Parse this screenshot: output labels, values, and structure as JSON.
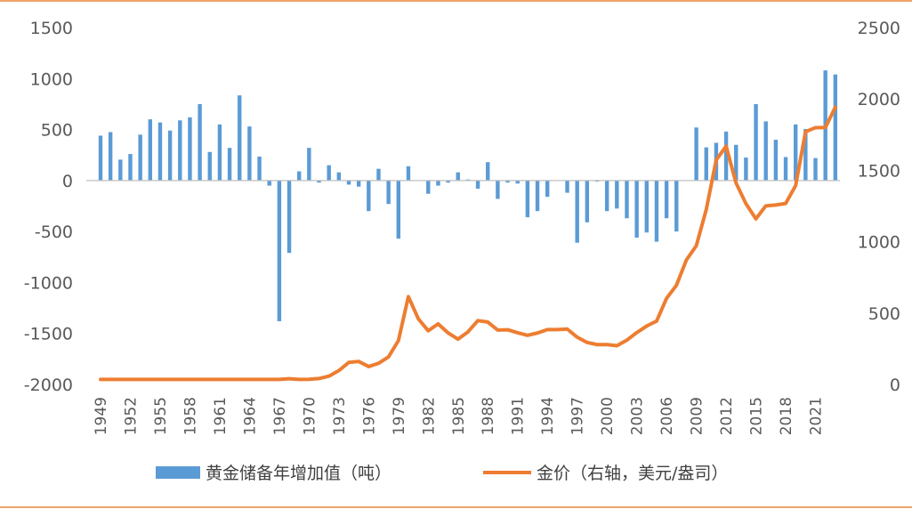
{
  "chart_data": {
    "type": "bar+line",
    "colors": {
      "bar": "#5B9BD5",
      "line": "#ED7D31",
      "frame": "#F0A46A",
      "axis": "#BFBFBF"
    },
    "x": [
      1949,
      1950,
      1951,
      1952,
      1953,
      1954,
      1955,
      1956,
      1957,
      1958,
      1959,
      1960,
      1961,
      1962,
      1963,
      1964,
      1965,
      1966,
      1967,
      1968,
      1969,
      1970,
      1971,
      1972,
      1973,
      1974,
      1975,
      1976,
      1977,
      1978,
      1979,
      1980,
      1981,
      1982,
      1983,
      1984,
      1985,
      1986,
      1987,
      1988,
      1989,
      1990,
      1991,
      1992,
      1993,
      1994,
      1995,
      1996,
      1997,
      1998,
      1999,
      2000,
      2001,
      2002,
      2003,
      2004,
      2005,
      2006,
      2007,
      2008,
      2009,
      2010,
      2011,
      2012,
      2013,
      2014,
      2015,
      2016,
      2017,
      2018,
      2019,
      2020,
      2021,
      2022,
      2023
    ],
    "x_tick_labels": [
      "1949",
      "1952",
      "1955",
      "1958",
      "1961",
      "1964",
      "1967",
      "1970",
      "1973",
      "1976",
      "1979",
      "1982",
      "1985",
      "1988",
      "1991",
      "1994",
      "1997",
      "2000",
      "2003",
      "2006",
      "2009",
      "2012",
      "2015",
      "2018",
      "2021"
    ],
    "series": [
      {
        "name": "黄金储备年增加值（吨）",
        "kind": "bar",
        "axis": "left",
        "values": [
          440,
          475,
          205,
          260,
          450,
          600,
          570,
          490,
          590,
          620,
          750,
          280,
          550,
          320,
          835,
          530,
          235,
          -50,
          -1380,
          -710,
          90,
          320,
          -20,
          150,
          80,
          -40,
          -60,
          -300,
          115,
          -230,
          -570,
          140,
          0,
          -130,
          -50,
          -20,
          80,
          10,
          -80,
          180,
          -180,
          -20,
          -30,
          -360,
          -300,
          -160,
          0,
          -120,
          -610,
          -410,
          -10,
          -300,
          -275,
          -370,
          -560,
          -510,
          -600,
          -370,
          -500,
          0,
          520,
          325,
          370,
          480,
          350,
          225,
          750,
          580,
          400,
          230,
          550,
          505,
          220,
          1080,
          1040
        ]
      },
      {
        "name": "金价（右轴，美元/盎司）",
        "kind": "line",
        "axis": "right",
        "values": [
          35,
          35,
          35,
          35,
          35,
          35,
          35,
          35,
          35,
          35,
          35,
          35,
          35,
          35,
          35,
          35,
          35,
          35,
          35,
          40,
          35,
          36,
          41,
          58,
          97,
          154,
          161,
          125,
          148,
          193,
          307,
          615,
          460,
          376,
          424,
          361,
          317,
          368,
          447,
          437,
          381,
          383,
          362,
          344,
          360,
          384,
          384,
          388,
          331,
          294,
          279,
          279,
          271,
          310,
          363,
          409,
          444,
          603,
          695,
          872,
          972,
          1225,
          1572,
          1669,
          1411,
          1266,
          1160,
          1251,
          1257,
          1268,
          1393,
          1770,
          1799,
          1800,
          1943
        ]
      }
    ],
    "left_axis": {
      "min": -2000,
      "max": 1500,
      "ticks": [
        "1500",
        "1000",
        "500",
        "0",
        "-500",
        "-1000",
        "-1500",
        "-2000"
      ]
    },
    "right_axis": {
      "min": 0,
      "max": 2500,
      "ticks": [
        "2500",
        "2000",
        "1500",
        "1000",
        "500",
        "0"
      ]
    },
    "legend": {
      "placement": "bottom"
    }
  }
}
